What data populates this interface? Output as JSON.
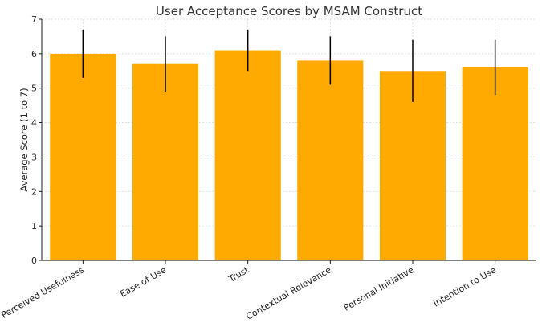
{
  "chart_data": {
    "type": "bar",
    "title": "User Acceptance Scores by MSAM Construct",
    "xlabel": "",
    "ylabel": "Average Score (1 to 7)",
    "categories": [
      "Perceived Usefulness",
      "Ease of Use",
      "Trust",
      "Contextual Relevance",
      "Personal Initiative",
      "Intention to Use"
    ],
    "values": [
      6.0,
      5.7,
      6.1,
      5.8,
      5.5,
      5.6
    ],
    "error": [
      0.7,
      0.8,
      0.6,
      0.7,
      0.9,
      0.8
    ],
    "ylim": [
      0,
      7
    ],
    "yticks": [
      "0",
      "1",
      "2",
      "3",
      "4",
      "5",
      "6",
      "7"
    ],
    "grid": true,
    "colors": {
      "bar": "#ffaa00",
      "error": "#000000"
    }
  }
}
